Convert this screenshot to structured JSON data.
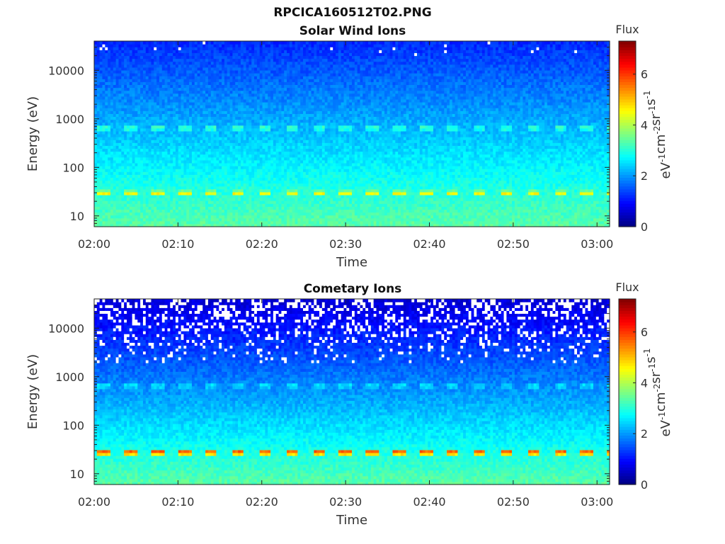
{
  "figure_title": "RPCICA160512T02.PNG",
  "chart_data": [
    {
      "type": "heatmap",
      "title": "Solar Wind Ions",
      "xlabel": "Time",
      "ylabel": "Energy (eV)",
      "x_ticks": [
        "02:00",
        "02:10",
        "02:20",
        "02:30",
        "02:40",
        "02:50",
        "03:00"
      ],
      "x_tick_minutes": [
        0,
        10,
        20,
        30,
        40,
        50,
        60
      ],
      "xlim_minutes": [
        0,
        61.5
      ],
      "y_scale": "log",
      "y_ticks": [
        "10",
        "100",
        "1000",
        "10000"
      ],
      "y_tick_values": [
        10,
        100,
        1000,
        10000
      ],
      "ylim": [
        6,
        40000
      ],
      "colorbar": {
        "label": "Flux",
        "units": "eV-1 cm-2 sr-1 s-1",
        "ticks": [
          "0",
          "2",
          "4",
          "6"
        ],
        "range": [
          0,
          7.3
        ],
        "colormap": "jet"
      },
      "features": [
        {
          "description": "pulsed band",
          "energy_eV": 650,
          "level": 3.3,
          "period_minutes": 3.2
        },
        {
          "description": "bright pulsed band",
          "energy_eV": 30,
          "level": 4.6,
          "period_minutes": 3.2
        }
      ],
      "background_level_high_energy": 1.2
    },
    {
      "type": "heatmap",
      "title": "Cometary Ions",
      "xlabel": "Time",
      "ylabel": "Energy (eV)",
      "x_ticks": [
        "02:00",
        "02:10",
        "02:20",
        "02:30",
        "02:40",
        "02:50",
        "03:00"
      ],
      "x_tick_minutes": [
        0,
        10,
        20,
        30,
        40,
        50,
        60
      ],
      "xlim_minutes": [
        0,
        61.5
      ],
      "y_scale": "log",
      "y_ticks": [
        "10",
        "100",
        "1000",
        "10000"
      ],
      "y_tick_values": [
        10,
        100,
        1000,
        10000
      ],
      "ylim": [
        6,
        40000
      ],
      "colorbar": {
        "label": "Flux",
        "units": "eV-1 cm-2 sr-1 s-1",
        "ticks": [
          "0",
          "2",
          "4",
          "6"
        ],
        "range": [
          0,
          7.3
        ],
        "colormap": "jet"
      },
      "features": [
        {
          "description": "pulsed band",
          "energy_eV": 650,
          "level": 2.7,
          "period_minutes": 3.2
        },
        {
          "description": "strong pulsed band",
          "energy_eV": 28,
          "level": 5.9,
          "period_minutes": 3.2
        }
      ],
      "background_level_high_energy": 0.6,
      "missing_data_above_eV": 2000
    }
  ]
}
